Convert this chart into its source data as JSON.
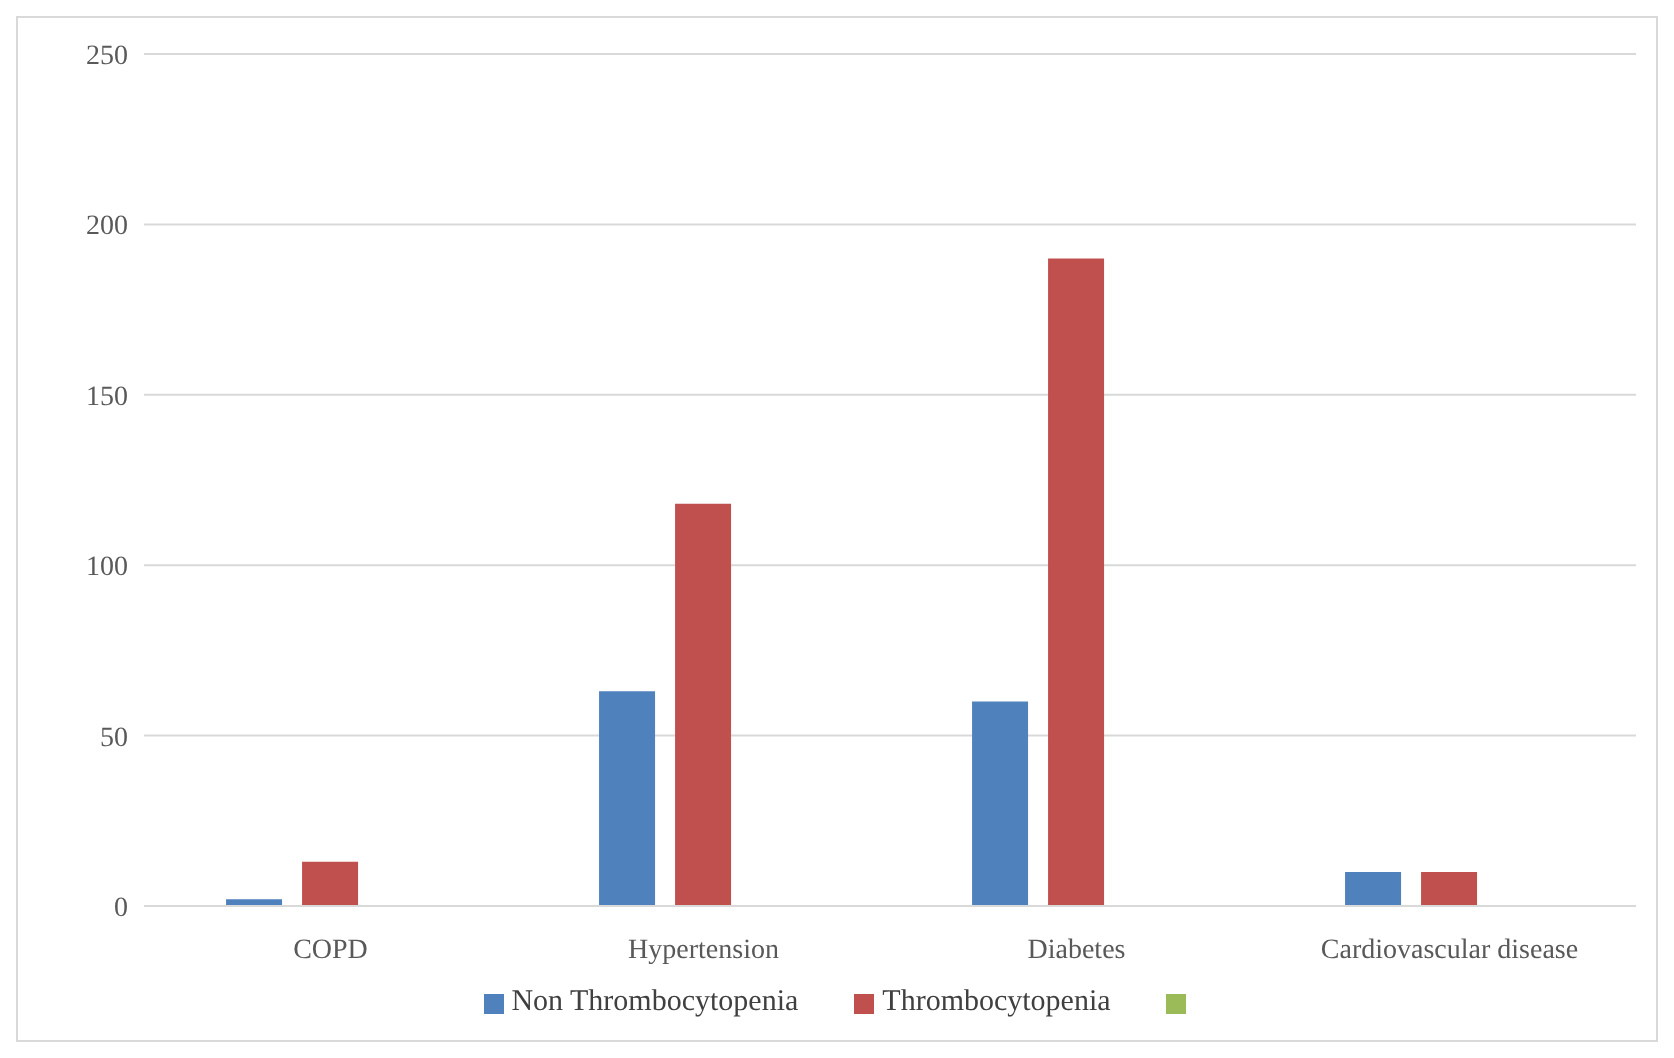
{
  "chart_data": {
    "type": "bar",
    "categories": [
      "COPD",
      "Hypertension",
      "Diabetes",
      "Cardiovascular disease"
    ],
    "series": [
      {
        "name": "Non Thrombocytopenia",
        "color": "#4f81bd",
        "values": [
          2,
          63,
          60,
          10
        ]
      },
      {
        "name": "Thrombocytopenia",
        "color": "#c0504d",
        "values": [
          13,
          118,
          190,
          10
        ]
      },
      {
        "color": "#9bbb59",
        "values": [
          null,
          null,
          null,
          null
        ]
      }
    ],
    "ylim": [
      0,
      250
    ],
    "yticks": [
      0,
      50,
      100,
      150,
      200,
      250
    ],
    "grid": "y",
    "legend": "bottom"
  }
}
